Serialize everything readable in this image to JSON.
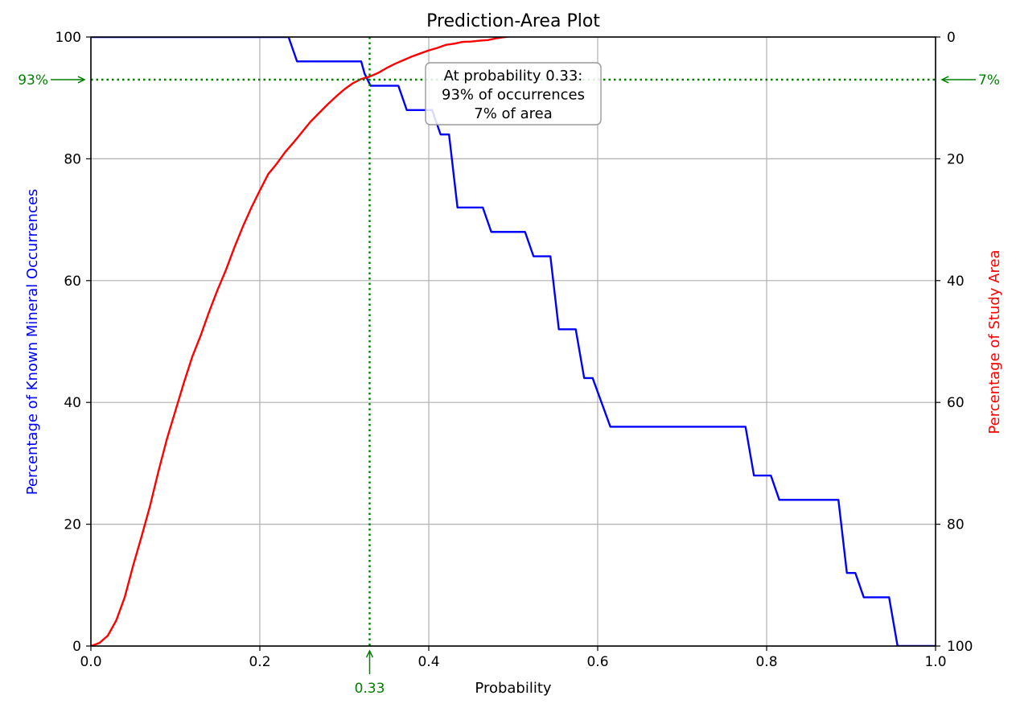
{
  "chart_data": {
    "type": "line",
    "title": "Prediction-Area Plot",
    "xlabel": "Probability",
    "ylabel_left": "Percentage of Known Mineral Occurrences",
    "ylabel_right": "Percentage of Study Area",
    "xlim": [
      0.0,
      1.0
    ],
    "ylim_left": [
      0,
      100
    ],
    "ylim_right": [
      100,
      0
    ],
    "right_axis_inverted": true,
    "grid": true,
    "x_ticks": [
      "0.0",
      "0.2",
      "0.4",
      "0.6",
      "0.8",
      "1.0"
    ],
    "y_ticks_left": [
      "0",
      "20",
      "40",
      "60",
      "80",
      "100"
    ],
    "y_ticks_right": [
      "100",
      "80",
      "60",
      "40",
      "20",
      "0"
    ],
    "colors": {
      "occurrences": "#0000ff",
      "area": "#ff0000",
      "intersection": "#008000",
      "grid": "#b0b0b0"
    },
    "series": [
      {
        "color": "#0000ff",
        "axis": "left",
        "x": [
          0.0,
          0.23,
          0.234,
          0.244,
          0.32,
          0.324,
          0.331,
          0.364,
          0.374,
          0.4,
          0.404,
          0.414,
          0.424,
          0.434,
          0.464,
          0.474,
          0.514,
          0.524,
          0.544,
          0.554,
          0.574,
          0.584,
          0.594,
          0.615,
          0.775,
          0.785,
          0.805,
          0.815,
          0.885,
          0.895,
          0.905,
          0.915,
          0.945,
          0.955,
          1.0
        ],
        "y": [
          100,
          100,
          100,
          96,
          96,
          94,
          92,
          92,
          88,
          88,
          88,
          84,
          84,
          72,
          72,
          68,
          68,
          64,
          64,
          52,
          52,
          44,
          44,
          36,
          36,
          28,
          28,
          24,
          24,
          12,
          12,
          8,
          8,
          0,
          0
        ]
      },
      {
        "color": "#ff0000",
        "axis": "right",
        "x": [
          0.0,
          0.01,
          0.02,
          0.03,
          0.04,
          0.05,
          0.06,
          0.07,
          0.08,
          0.09,
          0.1,
          0.11,
          0.12,
          0.13,
          0.14,
          0.15,
          0.16,
          0.17,
          0.18,
          0.19,
          0.2,
          0.21,
          0.22,
          0.23,
          0.24,
          0.25,
          0.26,
          0.27,
          0.28,
          0.29,
          0.3,
          0.31,
          0.32,
          0.33,
          0.34,
          0.35,
          0.36,
          0.37,
          0.38,
          0.39,
          0.4,
          0.41,
          0.42,
          0.43,
          0.44,
          0.45,
          0.46,
          0.47,
          0.48,
          0.5,
          0.52,
          0.54,
          0.56,
          0.58,
          0.6,
          0.62,
          0.65,
          0.7,
          0.75,
          0.8,
          0.85,
          0.9,
          0.95,
          1.0
        ],
        "y": [
          100,
          99.5,
          98.3,
          95.8,
          92.0,
          86.8,
          82.0,
          77.0,
          71.3,
          66.0,
          61.4,
          56.8,
          52.5,
          49.0,
          45.1,
          41.5,
          38.2,
          34.5,
          31.1,
          28.0,
          25.2,
          22.5,
          20.8,
          18.9,
          17.3,
          15.6,
          13.9,
          12.5,
          11.1,
          9.8,
          8.6,
          7.6,
          6.9,
          6.5,
          5.9,
          5.1,
          4.4,
          3.8,
          3.2,
          2.7,
          2.2,
          1.8,
          1.3,
          1.1,
          0.8,
          0.75,
          0.6,
          0.5,
          0.2,
          -0.2,
          -0.6,
          -0.9,
          -1.0,
          -1.1,
          -1.2,
          -1.45,
          -1.6,
          -1.7,
          -1.75,
          -1.8,
          -1.82,
          -1.85,
          -1.9,
          -2.0
        ]
      }
    ],
    "intersection": {
      "x": 0.33,
      "left_value": 93,
      "right_value": 7,
      "x_label": "0.33",
      "left_label": "93%",
      "right_label": "7%",
      "annotation": [
        "At probability 0.33:",
        "93% of occurrences",
        "7% of area"
      ]
    }
  }
}
